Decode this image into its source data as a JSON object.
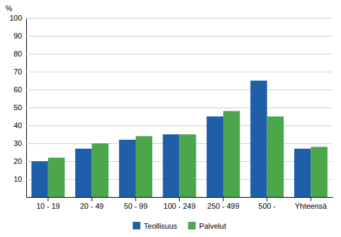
{
  "chart_data": {
    "type": "bar",
    "ylabel": "%",
    "categories": [
      "10 - 19",
      "20 - 49",
      "50 - 99",
      "100 - 249",
      "250 - 499",
      "500 -",
      "Yhteensä"
    ],
    "series": [
      {
        "name": "Teollisuus",
        "color": "#1f5faa",
        "values": [
          20,
          27,
          32,
          35,
          45,
          65,
          27
        ]
      },
      {
        "name": "Palvelut",
        "color": "#4ca64c",
        "values": [
          22,
          30,
          34,
          35,
          48,
          45,
          28
        ]
      }
    ],
    "ylim": [
      0,
      100
    ],
    "yticks": [
      10,
      20,
      30,
      40,
      50,
      60,
      70,
      80,
      90,
      100
    ],
    "grid": true,
    "legend": "bottom"
  }
}
